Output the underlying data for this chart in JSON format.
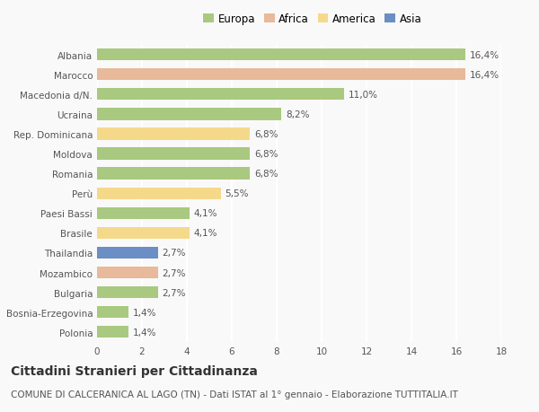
{
  "categories": [
    "Albania",
    "Marocco",
    "Macedonia d/N.",
    "Ucraina",
    "Rep. Dominicana",
    "Moldova",
    "Romania",
    "Perù",
    "Paesi Bassi",
    "Brasile",
    "Thailandia",
    "Mozambico",
    "Bulgaria",
    "Bosnia-Erzegovina",
    "Polonia"
  ],
  "values": [
    16.4,
    16.4,
    11.0,
    8.2,
    6.8,
    6.8,
    6.8,
    5.5,
    4.1,
    4.1,
    2.7,
    2.7,
    2.7,
    1.4,
    1.4
  ],
  "labels": [
    "16,4%",
    "16,4%",
    "11,0%",
    "8,2%",
    "6,8%",
    "6,8%",
    "6,8%",
    "5,5%",
    "4,1%",
    "4,1%",
    "2,7%",
    "2,7%",
    "2,7%",
    "1,4%",
    "1,4%"
  ],
  "colors": [
    "#a8c97f",
    "#e8b99a",
    "#a8c97f",
    "#a8c97f",
    "#f5d98b",
    "#a8c97f",
    "#a8c97f",
    "#f5d98b",
    "#a8c97f",
    "#f5d98b",
    "#6b8ec4",
    "#e8b99a",
    "#a8c97f",
    "#a8c97f",
    "#a8c97f"
  ],
  "legend_labels": [
    "Europa",
    "Africa",
    "America",
    "Asia"
  ],
  "legend_colors": [
    "#a8c97f",
    "#e8b99a",
    "#f5d98b",
    "#6b8ec4"
  ],
  "xlim": [
    0,
    18
  ],
  "xticks": [
    0,
    2,
    4,
    6,
    8,
    10,
    12,
    14,
    16,
    18
  ],
  "title": "Cittadini Stranieri per Cittadinanza",
  "subtitle": "COMUNE DI CALCERANICA AL LAGO (TN) - Dati ISTAT al 1° gennaio - Elaborazione TUTTITALIA.IT",
  "background_color": "#f9f9f9",
  "grid_color": "#ffffff",
  "bar_height": 0.6,
  "title_fontsize": 10,
  "subtitle_fontsize": 7.5,
  "label_fontsize": 7.5,
  "tick_fontsize": 7.5,
  "legend_fontsize": 8.5
}
